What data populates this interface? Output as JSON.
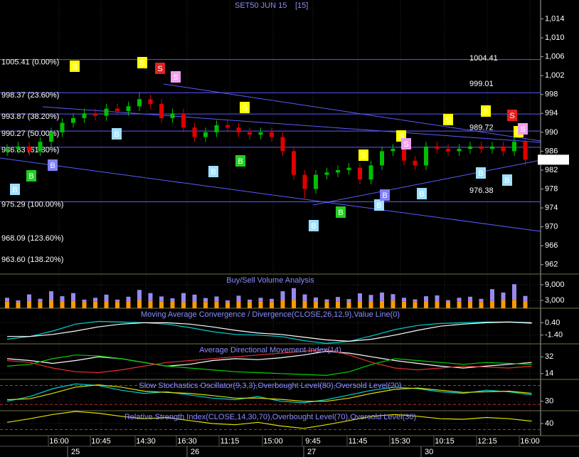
{
  "chart_data": [
    {
      "type": "candlestick",
      "title": "SET50 JUN 15",
      "interval": "[15]",
      "up_color": "#00c000",
      "down_color": "#e00000",
      "open": [
        986,
        986.5,
        987,
        986,
        988,
        990,
        992,
        993,
        994,
        993.5,
        995,
        994.5,
        995.5,
        997,
        996,
        993,
        994,
        991,
        989,
        990,
        991.5,
        991,
        990,
        989.5,
        990,
        989,
        986,
        981,
        978,
        981,
        981.5,
        982,
        982.5,
        980,
        983,
        986,
        986.5,
        984,
        983,
        987,
        986.5,
        986,
        986.5,
        987,
        986.5,
        987,
        986,
        988
      ],
      "high": [
        987.5,
        988,
        988,
        989,
        991,
        993,
        994,
        995,
        995,
        996,
        996,
        996.5,
        998.5,
        998,
        997,
        995,
        995,
        992,
        991,
        992.5,
        992.5,
        992,
        991,
        991,
        991,
        990,
        987,
        982,
        982,
        982.5,
        983,
        983.5,
        983.5,
        984,
        987,
        987.5,
        987.5,
        985,
        988,
        988,
        987.5,
        987.5,
        988,
        988,
        988,
        988,
        989.5,
        989
      ],
      "low": [
        985,
        985.5,
        985,
        985,
        987,
        989,
        991,
        992,
        992.5,
        992.5,
        993.5,
        993.5,
        994.5,
        995,
        992,
        992,
        990,
        988,
        988,
        989,
        990,
        989,
        988.5,
        988.5,
        988,
        985,
        980,
        976,
        977,
        980,
        980.5,
        981,
        979,
        979,
        982,
        985,
        983,
        982,
        982,
        985.5,
        985,
        985,
        985.5,
        985.5,
        985.5,
        985,
        985,
        983
      ],
      "close": [
        986.5,
        987,
        986,
        988,
        990,
        992,
        993,
        994,
        993.5,
        995,
        994.5,
        995.5,
        997,
        996,
        993,
        994,
        991,
        989,
        990,
        991.5,
        991,
        990,
        989.5,
        990,
        989,
        986,
        981,
        978,
        981,
        981.5,
        982,
        982.5,
        980,
        983,
        986,
        986.5,
        984,
        983,
        987,
        986.5,
        986,
        986.5,
        987,
        986.5,
        987,
        986,
        988,
        984.2
      ],
      "ylim": [
        960,
        1018
      ],
      "yticks": [
        962,
        966,
        970,
        974,
        978,
        982,
        986,
        990,
        994,
        998,
        {
          "value": 1002,
          "label": "1,002"
        },
        {
          "value": 1006,
          "label": "1,006"
        },
        {
          "value": 1010,
          "label": "1,010"
        },
        {
          "value": 1014,
          "label": "1,014"
        }
      ],
      "fib_levels": [
        {
          "value": 1005.41,
          "label": "1005.41 (0.00%)",
          "line": true
        },
        {
          "value": 998.37,
          "label": "998.37 (23.60%)",
          "line": true
        },
        {
          "value": 993.87,
          "label": "993.87 (38.20%)",
          "line": true
        },
        {
          "value": 990.27,
          "label": "990.27 (50.00%)",
          "line": true
        },
        {
          "value": 986.83,
          "label": "986.83 (61.80%)",
          "line": true
        },
        {
          "value": 975.29,
          "label": "975.29 (100.00%)",
          "line": true
        },
        {
          "value": 968.09,
          "label": "968.09 (123.60%)",
          "line": false
        },
        {
          "value": 963.6,
          "label": "963.60 (138.20%)",
          "line": false
        }
      ],
      "price_labels": [
        {
          "value": 1004.41,
          "label": "1004.41"
        },
        {
          "value": 999.01,
          "label": "999.01"
        },
        {
          "value": 989.72,
          "label": "989.72"
        },
        {
          "value": 976.38,
          "label": "976.38"
        }
      ],
      "last_price": {
        "value": 984.2,
        "label": "984.20"
      },
      "signals": [
        {
          "label": "S",
          "color": "#ffff00"
        },
        {
          "label": "S",
          "color": "#ffff00"
        },
        {
          "label": "S",
          "color": "#e02020"
        },
        {
          "label": "S",
          "color": "#f0a0f0"
        },
        {
          "label": "S",
          "color": "#ffff00"
        },
        {
          "label": "S",
          "color": "#ffff00"
        },
        {
          "label": "S",
          "color": "#f0a0f0"
        },
        {
          "label": "S",
          "color": "#ffff00"
        },
        {
          "label": "S",
          "color": "#ffff00"
        },
        {
          "label": "S",
          "color": "#ffff00"
        },
        {
          "label": "S",
          "color": "#e02020"
        },
        {
          "label": "S",
          "color": "#ffff00"
        },
        {
          "label": "S",
          "color": "#f0a0f0"
        },
        {
          "label": "B",
          "color": "#a0e0ff"
        },
        {
          "label": "B",
          "color": "#20d020"
        },
        {
          "label": "B",
          "color": "#8080ff"
        },
        {
          "label": "B",
          "color": "#a0e0ff"
        },
        {
          "label": "B",
          "color": "#a0e0ff"
        },
        {
          "label": "B",
          "color": "#20d020"
        },
        {
          "label": "B",
          "color": "#a0e0ff"
        },
        {
          "label": "B",
          "color": "#20d020"
        },
        {
          "label": "B",
          "color": "#a0e0ff"
        },
        {
          "label": "B",
          "color": "#8080ff"
        },
        {
          "label": "B",
          "color": "#a0e0ff"
        },
        {
          "label": "B",
          "color": "#a0e0ff"
        },
        {
          "label": "B",
          "color": "#a0e0ff"
        }
      ],
      "x_labels": [
        "16:00",
        "10:45",
        "14:30",
        "16:30",
        "11:15",
        "15:00",
        "9:45",
        "11:45",
        "15:30",
        "10:15",
        "12:15",
        "16:00"
      ],
      "date_labels": [
        "25",
        "26",
        "27",
        "30"
      ]
    },
    {
      "type": "stacked_bar",
      "title": "Buy/Sell Volume Analysis",
      "ylim": [
        0,
        12800
      ],
      "yticks": [
        {
          "value": 3000,
          "label": "3,000"
        },
        {
          "value": 9000,
          "label": "9,000"
        }
      ],
      "series": [
        {
          "color": "#ff9900",
          "values": [
            2500,
            2200,
            2800,
            2400,
            3000,
            2600,
            2800,
            2300,
            2500,
            2700,
            2400,
            2600,
            3000,
            2800,
            2500,
            2600,
            2300,
            2700,
            2400,
            2500,
            2200,
            2600,
            2300,
            2500,
            2400,
            3000,
            3200,
            2800,
            2600,
            2400,
            2500,
            2300,
            2700,
            2600,
            2800,
            2900,
            2500,
            2400,
            2600,
            2700,
            2300,
            2500,
            2600,
            2400,
            2800,
            3000,
            3200,
            2700
          ]
        },
        {
          "color": "#9988ee",
          "values": [
            1500,
            800,
            2500,
            1200,
            3500,
            2000,
            3000,
            1000,
            1500,
            2500,
            900,
            1800,
            4000,
            3000,
            2000,
            1200,
            3500,
            2500,
            1500,
            2000,
            800,
            2200,
            1000,
            1500,
            1200,
            3500,
            4500,
            2500,
            1500,
            1000,
            1800,
            1200,
            3000,
            2500,
            3200,
            2500,
            1500,
            1000,
            2000,
            2200,
            800,
            1500,
            1800,
            1200,
            4500,
            3000,
            6000,
            2000
          ]
        }
      ]
    },
    {
      "type": "line",
      "title": "Moving Average Convergence / Divergence(CLOSE,26,12,9),Value Line(0)",
      "ylim": [
        -2.67,
        2.41
      ],
      "yticks": [
        {
          "value": -1.4,
          "label": "-1.40"
        },
        {
          "value": 0.4,
          "label": "0.40"
        }
      ],
      "series": [
        {
          "color": "#00d0d0",
          "values": [
            -2.0,
            -1.6,
            -0.8,
            0.2,
            0.6,
            0.5,
            0.4,
            0.2,
            -0.3,
            -0.9,
            -1.3,
            -1.4,
            -1.6,
            -2.2,
            -2.6,
            -2.3,
            -1.5,
            -0.6,
            0.0,
            0.3,
            0.4,
            0.5,
            0.5,
            0.3
          ]
        },
        {
          "color": "#ffffff",
          "values": [
            -1.6,
            -1.6,
            -1.3,
            -0.8,
            -0.2,
            0.2,
            0.4,
            0.4,
            0.2,
            -0.2,
            -0.7,
            -1.1,
            -1.3,
            -1.7,
            -2.1,
            -2.3,
            -2.0,
            -1.4,
            -0.7,
            -0.1,
            0.2,
            0.4,
            0.5,
            0.4
          ]
        }
      ]
    },
    {
      "type": "line",
      "title": "Average Directional Movement Index(14)",
      "ylim": [
        7.7,
        45.3
      ],
      "yticks": [
        14,
        32
      ],
      "series": [
        {
          "color": "#ffffff",
          "values": [
            30,
            28,
            25,
            28,
            32,
            30,
            26,
            22,
            24,
            28,
            30,
            29,
            31,
            34,
            38,
            36,
            32,
            28,
            25,
            22,
            20,
            22,
            24,
            26
          ]
        },
        {
          "color": "#00d000",
          "values": [
            22,
            24,
            30,
            34,
            33,
            30,
            26,
            22,
            20,
            18,
            16,
            15,
            14,
            13,
            12,
            16,
            24,
            30,
            28,
            26,
            24,
            26,
            25,
            24
          ]
        },
        {
          "color": "#e03030",
          "values": [
            28,
            26,
            20,
            16,
            15,
            18,
            22,
            26,
            28,
            30,
            32,
            34,
            36,
            38,
            40,
            34,
            26,
            20,
            18,
            20,
            22,
            21,
            20,
            22
          ]
        }
      ]
    },
    {
      "type": "line",
      "title": "Slow Stochastics Oscillator(9,3,3),Overbought Level(80),Oversold Level(20)",
      "ylim": [
        0,
        97
      ],
      "yticks": [
        30
      ],
      "levels": [
        80,
        20
      ],
      "series": [
        {
          "color": "#00d0d0",
          "values": [
            30,
            45,
            70,
            85,
            80,
            65,
            55,
            60,
            50,
            40,
            35,
            45,
            30,
            25,
            35,
            50,
            65,
            75,
            70,
            60,
            55,
            65,
            60,
            50
          ]
        },
        {
          "color": "#e0e000",
          "values": [
            35,
            38,
            55,
            75,
            82,
            75,
            62,
            58,
            55,
            48,
            40,
            40,
            36,
            30,
            30,
            40,
            55,
            68,
            72,
            65,
            58,
            60,
            62,
            55
          ]
        }
      ]
    },
    {
      "type": "line",
      "title": "Relative Strength Index(CLOSE,14,30,70),Overbought Level(70),Oversold Level(30)",
      "ylim": [
        20,
        60
      ],
      "yticks": [
        40
      ],
      "levels": [
        70,
        30
      ],
      "series": [
        {
          "color": "#e0e000",
          "values": [
            42,
            48,
            55,
            60,
            57,
            52,
            48,
            50,
            45,
            40,
            38,
            42,
            36,
            32,
            38,
            45,
            52,
            55,
            52,
            48,
            47,
            50,
            48,
            44
          ]
        }
      ]
    }
  ]
}
